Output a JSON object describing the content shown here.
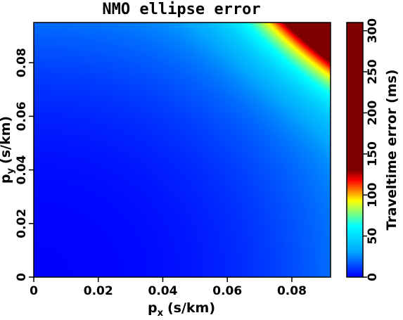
{
  "chart_data": {
    "type": "heatmap",
    "title": "NMO ellipse error",
    "x_axis": {
      "base": "p",
      "subscript": "x",
      "unit": "(s/km)",
      "range": [
        0,
        0.092
      ],
      "ticks": [
        "0",
        "0.02",
        "0.04",
        "0.06",
        "0.08"
      ],
      "tick_values": [
        0,
        0.02,
        0.04,
        0.06,
        0.08
      ]
    },
    "y_axis": {
      "base": "p",
      "subscript": "y",
      "unit": "(s/km)",
      "range": [
        0,
        0.095
      ],
      "ticks": [
        "0",
        "0.02",
        "0.04",
        "0.06",
        "0.08"
      ],
      "tick_values": [
        0,
        0.02,
        0.04,
        0.06,
        0.08
      ]
    },
    "colorbar": {
      "label": "Traveltime error (ms)",
      "range": [
        0,
        310
      ],
      "ticks": [
        "0",
        "50",
        "100",
        "150",
        "200",
        "250",
        "300"
      ],
      "tick_values": [
        0,
        50,
        100,
        150,
        200,
        250,
        300
      ],
      "colormap": [
        "#0000ff",
        "#00aaff",
        "#00ffff",
        "#ffff00",
        "#ff0000",
        "#800000"
      ],
      "colormap_stops": [
        0,
        0.1,
        0.2,
        0.3,
        0.38,
        0.42
      ]
    },
    "grid": false,
    "samples": {
      "description_points": [
        {
          "px": 0,
          "py": 0,
          "error": 0
        },
        {
          "px": 0.06,
          "py": 0.0,
          "error": 5
        },
        {
          "px": 0.09,
          "py": 0.0,
          "error": 25
        },
        {
          "px": 0.0,
          "py": 0.09,
          "error": 25
        },
        {
          "px": 0.06,
          "py": 0.06,
          "error": 30
        },
        {
          "px": 0.07,
          "py": 0.07,
          "error": 55
        },
        {
          "px": 0.08,
          "py": 0.08,
          "error": 115
        },
        {
          "px": 0.092,
          "py": 0.095,
          "error": 310
        }
      ]
    }
  }
}
